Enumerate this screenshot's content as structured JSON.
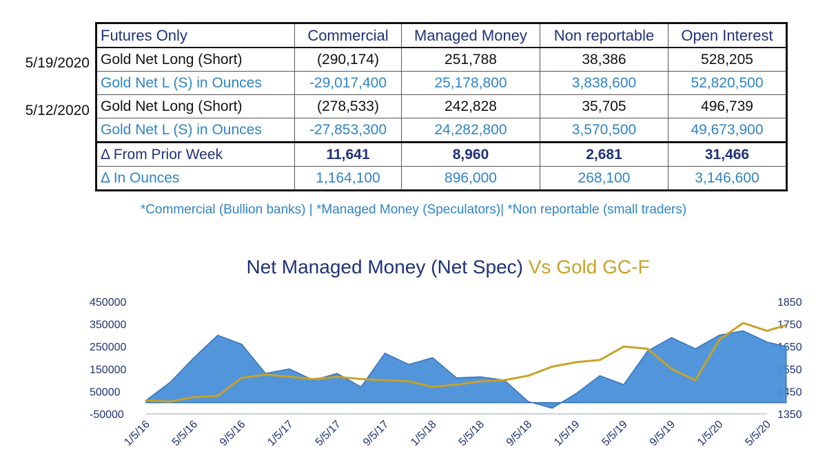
{
  "table": {
    "headers": [
      "Futures Only",
      "Commercial",
      "Managed Money",
      "Non reportable",
      "Open Interest"
    ],
    "groups": [
      {
        "date": "5/19/2020",
        "net": {
          "label": "Gold Net Long (Short)",
          "values": [
            "(290,174)",
            "251,788",
            "38,386",
            "528,205"
          ]
        },
        "oz": {
          "label": "Gold Net L (S) in Ounces",
          "values": [
            "-29,017,400",
            "25,178,800",
            "3,838,600",
            "52,820,500"
          ]
        }
      },
      {
        "date": "5/12/2020",
        "net": {
          "label": "Gold Net Long (Short)",
          "values": [
            "(278,533)",
            "242,828",
            "35,705",
            "496,739"
          ]
        },
        "oz": {
          "label": "Gold Net L (S) in Ounces",
          "values": [
            "-27,853,300",
            "24,282,800",
            "3,570,500",
            "49,673,900"
          ]
        }
      }
    ],
    "delta": {
      "label": "Δ From Prior Week",
      "values": [
        "11,641",
        "8,960",
        "2,681",
        "31,466"
      ]
    },
    "delta_oz": {
      "label": "Δ In Ounces",
      "values": [
        "1,164,100",
        "896,000",
        "268,100",
        "3,146,600"
      ]
    }
  },
  "footnote": "*Commercial (Bullion banks) | *Managed Money (Speculators)| *Non reportable (small traders)",
  "colors": {
    "navy": "#1f3277",
    "blue_text": "#2f84c7",
    "area_fill": "#4a90d9",
    "area_stroke": "#2a6db5",
    "gold": "#c9a227"
  },
  "chart_data": {
    "type": "area",
    "title": {
      "part1": "Net Managed Money (Net Spec) ",
      "part2": "Vs Gold GC-F"
    },
    "x_ticks": [
      "1/5/16",
      "5/5/16",
      "9/5/16",
      "1/5/17",
      "5/5/17",
      "9/5/17",
      "1/5/18",
      "5/5/18",
      "9/5/18",
      "1/5/19",
      "5/5/19",
      "9/5/19",
      "1/5/20",
      "5/5/20"
    ],
    "y_left": {
      "ticks": [
        "450000",
        "350000",
        "250000",
        "150000",
        "50000",
        "-50000"
      ],
      "range": [
        -50000,
        450000
      ]
    },
    "y_right": {
      "ticks": [
        "1850",
        "1750",
        "1650",
        "1550",
        "1450",
        "1350"
      ],
      "range": [
        1350,
        1850
      ]
    },
    "series": [
      {
        "axis": "left",
        "kind": "area",
        "x": [
          0,
          0.5,
          1,
          1.5,
          2,
          2.5,
          3,
          3.5,
          4,
          4.5,
          5,
          5.5,
          6,
          6.5,
          7,
          7.5,
          8,
          8.5,
          9,
          9.5,
          10,
          10.5,
          11,
          11.5,
          12,
          12.5,
          13,
          13.4
        ],
        "values": [
          10000,
          90000,
          200000,
          300000,
          260000,
          130000,
          150000,
          100000,
          130000,
          70000,
          220000,
          170000,
          200000,
          110000,
          115000,
          100000,
          5000,
          -25000,
          40000,
          120000,
          80000,
          230000,
          290000,
          240000,
          300000,
          320000,
          270000,
          250000
        ]
      },
      {
        "axis": "right",
        "kind": "line",
        "x": [
          0,
          0.5,
          1,
          1.5,
          2,
          2.5,
          3,
          3.5,
          4,
          4.5,
          5,
          5.5,
          6,
          6.5,
          7,
          7.5,
          8,
          8.5,
          9,
          9.5,
          10,
          10.5,
          11,
          11.5,
          12,
          12.5,
          13,
          13.4
        ],
        "values": [
          1410,
          1405,
          1425,
          1430,
          1510,
          1525,
          1515,
          1505,
          1515,
          1505,
          1500,
          1495,
          1470,
          1480,
          1495,
          1500,
          1520,
          1560,
          1580,
          1590,
          1650,
          1640,
          1550,
          1500,
          1680,
          1755,
          1720,
          1745
        ]
      }
    ]
  }
}
